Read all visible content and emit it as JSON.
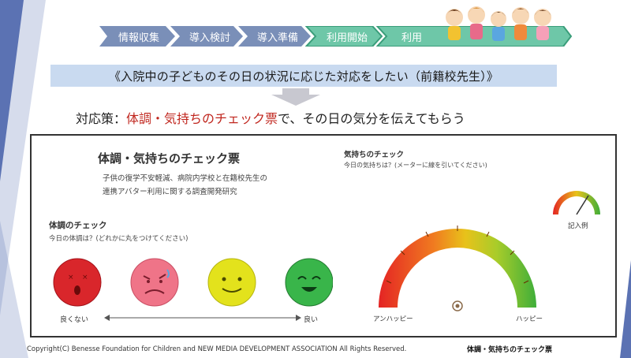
{
  "process_steps": [
    {
      "label": "情報収集",
      "active": false
    },
    {
      "label": "導入検討",
      "active": false
    },
    {
      "label": "導入準備",
      "active": false
    },
    {
      "label": "利用開始",
      "active": true
    },
    {
      "label": "利用",
      "active": true
    }
  ],
  "colors": {
    "inactive_step": "#7a8fb8",
    "active_step": "#6ec7a8",
    "banner": "#c9daf0",
    "accent_red": "#c0261e",
    "side_band": "#5b72b3"
  },
  "banner": {
    "quote": "《入院中の子どものその日の状況に応じた対応をしたい（前籍校先生）》"
  },
  "measure": {
    "prefix": "対応策：",
    "highlight": "体調・気持ちのチェック票",
    "suffix": "で、その日の気分を伝えてもらう"
  },
  "sheet": {
    "title": "体調・気持ちのチェック票",
    "subtitle_line1": "子供の復学不安軽減、病院内学校と在籍校先生の",
    "subtitle_line2": "連携アバター利用に関する調査開発研究",
    "body_check": {
      "heading": "体調のチェック",
      "instruction": "今日の体調は？(どれかに丸をつけてください)",
      "faces": [
        {
          "name": "very-bad-face",
          "color": "#d9262b"
        },
        {
          "name": "bad-face",
          "color": "#ef7488"
        },
        {
          "name": "good-face",
          "color": "#e3e21c"
        },
        {
          "name": "very-good-face",
          "color": "#39b54a"
        }
      ],
      "left_label": "良くない",
      "right_label": "良い"
    },
    "mood_check": {
      "heading": "気持ちのチェック",
      "instruction": "今日の気持ちは？(メーターに線を引いてください)",
      "left_label": "アンハッピー",
      "right_label": "ハッピー",
      "example_label": "記入例"
    }
  },
  "copyright": "Copyright(C) Benesse Foundation for Children and NEW MEDIA DEVELOPMENT ASSOCIATION All Rights Reserved.",
  "caption": "体調・気持ちのチェック票"
}
